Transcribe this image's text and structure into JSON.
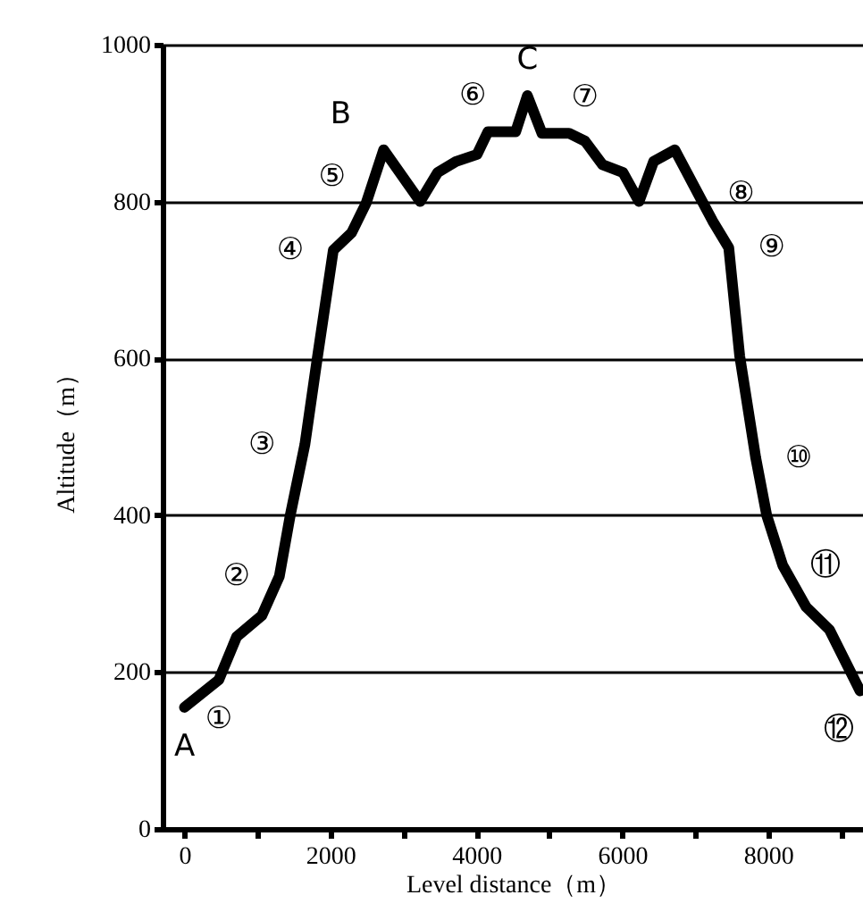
{
  "chart_data": {
    "type": "line",
    "xlabel": "Level distance（m）",
    "ylabel": "Altitude（m）",
    "x": [
      0,
      470,
      715,
      1060,
      1300,
      1450,
      1650,
      1820,
      2040,
      2290,
      2490,
      2730,
      3230,
      3470,
      3720,
      4010,
      4160,
      4540,
      4700,
      4900,
      5270,
      5490,
      5730,
      6010,
      6230,
      6430,
      6720,
      7040,
      7240,
      7460,
      7610,
      7830,
      7980,
      8200,
      8520,
      8840,
      9260
    ],
    "series": [
      {
        "color": "#000000",
        "values": [
          155,
          190,
          245,
          272,
          322,
          400,
          490,
          600,
          738,
          760,
          798,
          866,
          800,
          837,
          851,
          860,
          889,
          889,
          935,
          887,
          887,
          877,
          847,
          837,
          800,
          851,
          866,
          810,
          775,
          741,
          603,
          473,
          400,
          336,
          283,
          254,
          176
        ]
      }
    ],
    "xlim": [
      -300,
      9300
    ],
    "ylim": [
      0,
      1000
    ],
    "xticks": [
      0,
      {
        "value": 1000,
        "label": null
      },
      2000,
      {
        "value": 3000,
        "label": null
      },
      4000,
      {
        "value": 5000,
        "label": null
      },
      6000,
      {
        "value": 7000,
        "label": null
      },
      8000,
      {
        "value": 9000,
        "label": null
      }
    ],
    "yticks": [
      0,
      200,
      400,
      600,
      800,
      1000
    ],
    "grid": "y",
    "marker": "none",
    "line_style": "solid",
    "annotations": [
      {
        "text": "A",
        "x": 0,
        "y": 155
      },
      {
        "text": "①",
        "x": 470,
        "y": 190
      },
      {
        "text": "②",
        "x": 1300,
        "y": 322
      },
      {
        "text": "③",
        "x": 1650,
        "y": 490
      },
      {
        "text": "④",
        "x": 2040,
        "y": 738
      },
      {
        "text": "⑤",
        "x": 2610,
        "y": 832
      },
      {
        "text": "B",
        "x": 2730,
        "y": 866
      },
      {
        "text": "⑥",
        "x": 4540,
        "y": 889
      },
      {
        "text": "C",
        "x": 4700,
        "y": 935
      },
      {
        "text": "⑦",
        "x": 4900,
        "y": 887
      },
      {
        "text": "⑧",
        "x": 7040,
        "y": 810
      },
      {
        "text": "⑨",
        "x": 7460,
        "y": 741
      },
      {
        "text": "⑩",
        "x": 7830,
        "y": 473
      },
      {
        "text": "⑪",
        "x": 8200,
        "y": 336
      },
      {
        "text": "⑫",
        "x": 9260,
        "y": 176
      }
    ]
  }
}
